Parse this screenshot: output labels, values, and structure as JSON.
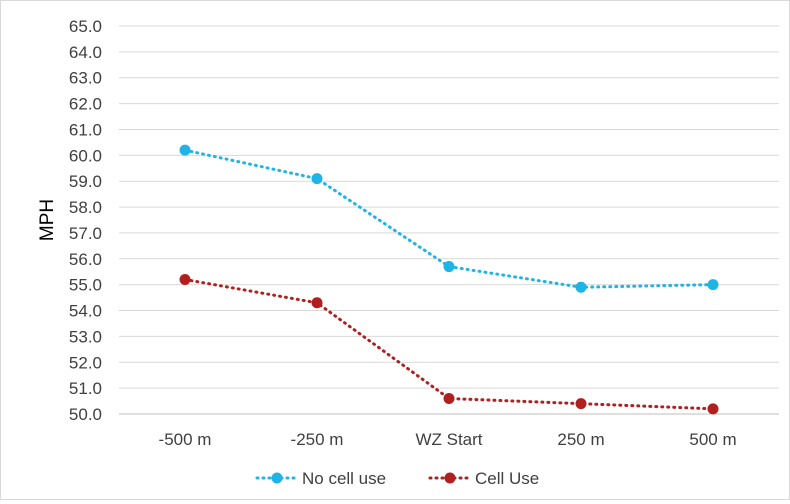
{
  "chart_data": {
    "type": "line",
    "categories": [
      "-500 m",
      "-250 m",
      "WZ Start",
      "250 m",
      "500 m"
    ],
    "series": [
      {
        "name": "No cell use",
        "color": "#1fb4e6",
        "values": [
          60.2,
          59.1,
          55.7,
          54.9,
          55.0
        ]
      },
      {
        "name": "Cell Use",
        "color": "#b11f1f",
        "values": [
          55.2,
          54.3,
          50.6,
          50.4,
          50.2
        ]
      }
    ],
    "title": "",
    "xlabel": "",
    "ylabel": "MPH",
    "ylim": [
      50.0,
      65.0
    ],
    "ytick_step": 1.0,
    "grid": "horizontal",
    "legend_position": "bottom",
    "line_style": "dotted",
    "marker": "circle"
  }
}
